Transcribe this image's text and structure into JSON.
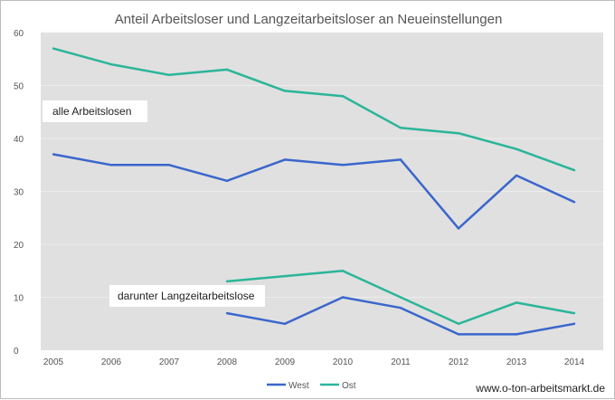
{
  "chart_data": {
    "type": "line",
    "title": "Anteil Arbeitsloser und Langzeitarbeitsloser an Neueinstellungen",
    "xlabel": "",
    "ylabel": "",
    "categories": [
      "2005",
      "2006",
      "2007",
      "2008",
      "2009",
      "2010",
      "2011",
      "2012",
      "2013",
      "2014"
    ],
    "ylim": [
      0,
      60
    ],
    "yticks": [
      0,
      10,
      20,
      30,
      40,
      50,
      60
    ],
    "grid": true,
    "legend_position": "bottom",
    "colors": {
      "West": "#3a66cc",
      "Ost": "#2bb59a",
      "plot_background": "#e0e0e0"
    },
    "series": [
      {
        "name": "West",
        "group": "alle Arbeitslosen",
        "values": [
          37,
          35,
          35,
          32,
          36,
          35,
          36,
          23,
          33,
          28
        ]
      },
      {
        "name": "Ost",
        "group": "alle Arbeitslosen",
        "values": [
          57,
          54,
          52,
          53,
          49,
          48,
          42,
          41,
          38,
          34
        ]
      },
      {
        "name": "West",
        "group": "darunter Langzeitarbeitslose",
        "values": [
          null,
          null,
          null,
          7,
          5,
          10,
          8,
          3,
          3,
          5
        ]
      },
      {
        "name": "Ost",
        "group": "darunter Langzeitarbeitslose",
        "values": [
          null,
          null,
          null,
          13,
          14,
          15,
          10,
          5,
          9,
          7
        ]
      }
    ],
    "annotations": [
      {
        "text": "alle Arbeitslosen"
      },
      {
        "text": "darunter Langzeitarbeitslose"
      }
    ],
    "legend": [
      {
        "label": "West"
      },
      {
        "label": "Ost"
      }
    ]
  },
  "source": "www.o-ton-arbeitsmarkt.de"
}
